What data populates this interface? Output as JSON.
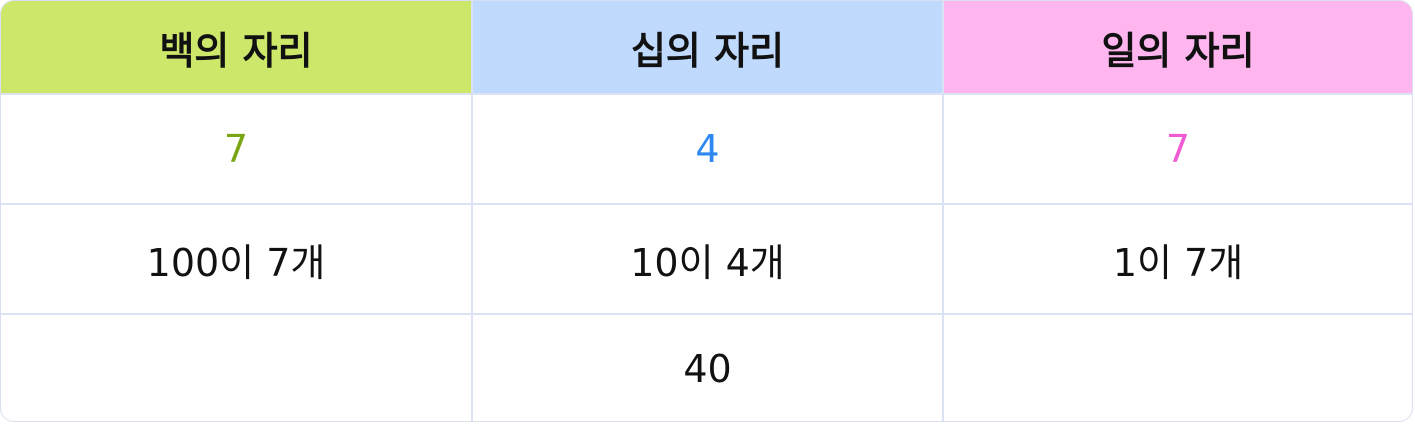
{
  "headers": [
    {
      "label": "백의 자리",
      "bg": "#cde76a"
    },
    {
      "label": "십의 자리",
      "bg": "#bfdafd"
    },
    {
      "label": "일의 자리",
      "bg": "#ffb6ef"
    }
  ],
  "digits": [
    {
      "value": "7",
      "color": "#7aa514"
    },
    {
      "value": "4",
      "color": "#2f88f2"
    },
    {
      "value": "7",
      "color": "#f05ad2"
    }
  ],
  "counts": [
    "100이 7개",
    "10이 4개",
    "1이 7개"
  ],
  "values": [
    "",
    "40",
    ""
  ]
}
